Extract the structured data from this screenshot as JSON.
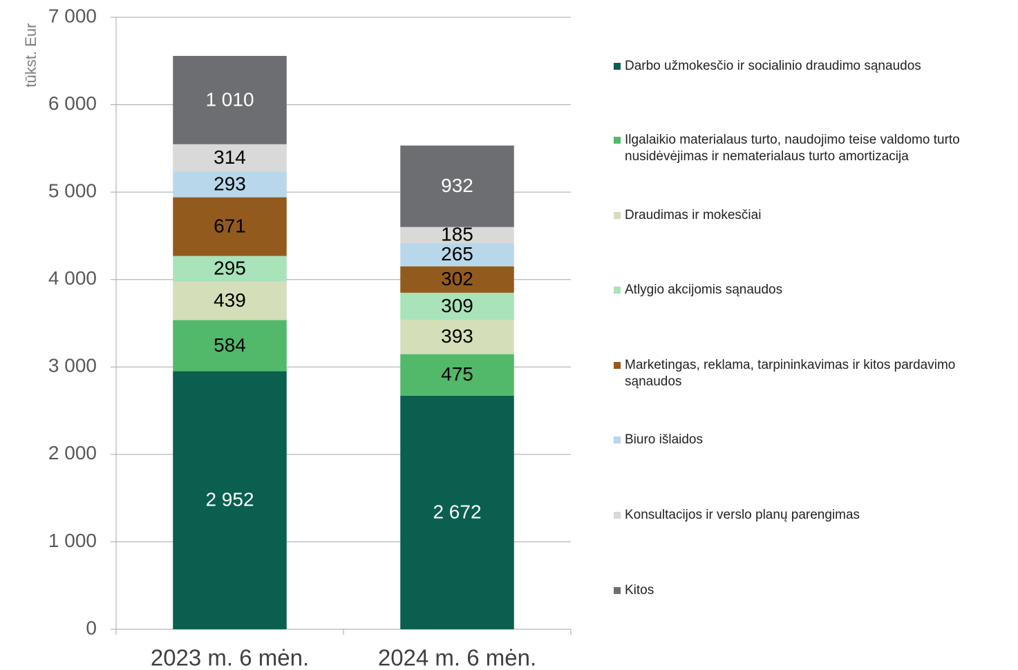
{
  "chart_data": {
    "type": "stacked_bar",
    "y_label": "tūkst. Eur",
    "categories": [
      "2023 m. 6 mėn.",
      "2024 m. 6 mėn."
    ],
    "ylim": [
      0,
      7000
    ],
    "yticks": [
      0,
      {
        "value": 1000,
        "label": "1 000"
      },
      {
        "value": 2000,
        "label": "2 000"
      },
      {
        "value": 3000,
        "label": "3 000"
      },
      {
        "value": 4000,
        "label": "4 000"
      },
      {
        "value": 5000,
        "label": "5 000"
      },
      {
        "value": 6000,
        "label": "6 000"
      },
      {
        "value": 7000,
        "label": "7 000"
      }
    ],
    "grid": true,
    "legend": "right",
    "series": [
      {
        "name": "Darbo užmokesčio ir socialinio draudimo sąnaudos",
        "color": "#0a5f4f",
        "label_color": "#ffffff",
        "values": [
          2952,
          2672
        ],
        "value_labels": [
          "2 952",
          "2 672"
        ]
      },
      {
        "name": "Ilgalaikio materialaus turto, naudojimo teise valdomo turto nusidėvėjimas ir nematerialaus turto amortizacija",
        "color": "#52b96a",
        "label_color": "#000000",
        "values": [
          584,
          475
        ],
        "value_labels": [
          "584",
          "475"
        ]
      },
      {
        "name": "Draudimas ir mokesčiai",
        "color": "#d4deb8",
        "label_color": "#000000",
        "values": [
          439,
          393
        ],
        "value_labels": [
          "439",
          "393"
        ]
      },
      {
        "name": "Atlygio akcijomis sąnaudos",
        "color": "#a8e3b9",
        "label_color": "#000000",
        "values": [
          295,
          309
        ],
        "value_labels": [
          "295",
          "309"
        ]
      },
      {
        "name": "Marketingas, reklama, tarpininkavimas ir kitos pardavimo sąnaudos",
        "color": "#935a1e",
        "label_color": "#000000",
        "values": [
          671,
          302
        ],
        "value_labels": [
          "671",
          "302"
        ]
      },
      {
        "name": "Biuro išlaidos",
        "color": "#b8d7ea",
        "label_color": "#000000",
        "values": [
          293,
          265
        ],
        "value_labels": [
          "293",
          "265"
        ]
      },
      {
        "name": "Konsultacijos ir verslo planų parengimas",
        "color": "#d9d9d9",
        "label_color": "#000000",
        "values": [
          314,
          185
        ],
        "value_labels": [
          "314",
          "185"
        ]
      },
      {
        "name": "Kitos",
        "color": "#6d6e71",
        "label_color": "#ffffff",
        "values": [
          1010,
          932
        ],
        "value_labels": [
          "1 010",
          "932"
        ]
      }
    ]
  }
}
